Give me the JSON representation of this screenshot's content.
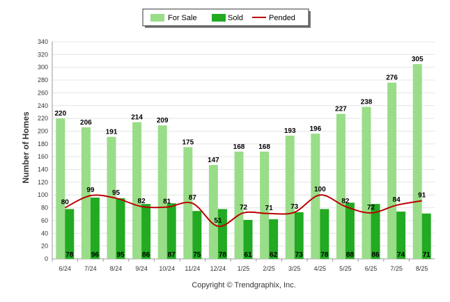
{
  "chart_data": {
    "type": "bar",
    "categories": [
      "6/24",
      "7/24",
      "8/24",
      "9/24",
      "10/24",
      "11/24",
      "12/24",
      "1/25",
      "2/25",
      "3/25",
      "4/25",
      "5/25",
      "6/25",
      "7/25",
      "8/25"
    ],
    "series": [
      {
        "name": "For Sale",
        "type": "bar",
        "color": "#99dd88",
        "values": [
          220,
          206,
          191,
          214,
          209,
          175,
          147,
          168,
          168,
          193,
          196,
          227,
          238,
          276,
          305
        ]
      },
      {
        "name": "Sold",
        "type": "bar",
        "color": "#22aa22",
        "values": [
          78,
          96,
          95,
          86,
          87,
          75,
          78,
          61,
          62,
          73,
          78,
          88,
          86,
          74,
          71
        ]
      },
      {
        "name": "Pended",
        "type": "line",
        "color": "#bb0000",
        "values": [
          80,
          99,
          95,
          82,
          81,
          87,
          51,
          72,
          71,
          73,
          100,
          82,
          72,
          84,
          91
        ]
      }
    ],
    "ylabel": "Number of Homes",
    "ylim": [
      0,
      340
    ],
    "yticks": [
      0,
      20,
      40,
      60,
      80,
      100,
      120,
      140,
      160,
      180,
      200,
      220,
      240,
      260,
      280,
      300,
      320,
      340
    ],
    "grid": true,
    "legend_position": "top-center"
  },
  "footer": "Copyright © Trendgraphix, Inc."
}
